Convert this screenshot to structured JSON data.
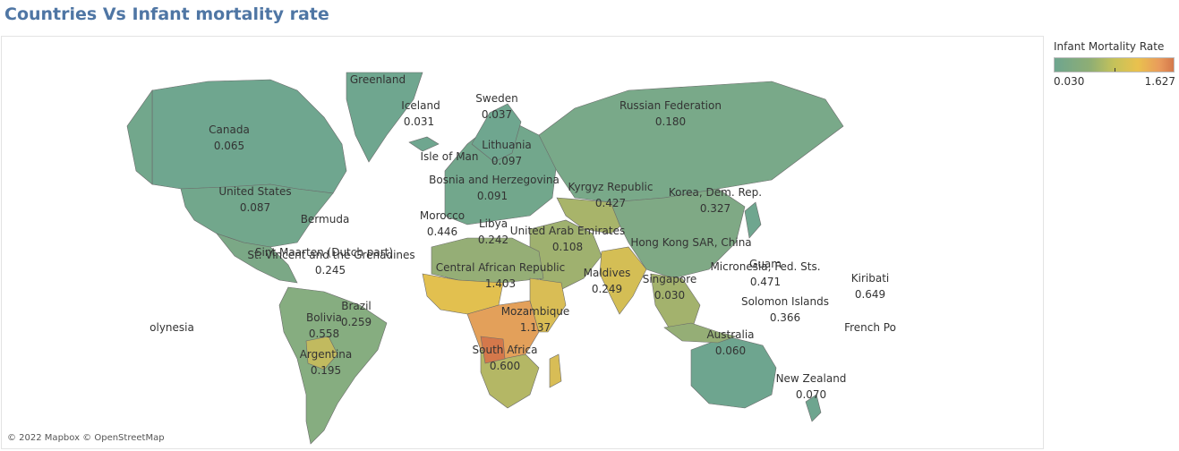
{
  "title": "Countries Vs Infant mortality rate",
  "legend": {
    "title": "Infant Mortality Rate",
    "min": "0.030",
    "max": "1.627",
    "colors": [
      "#6ea58f",
      "#c5c25a",
      "#e9c14e",
      "#d4784b"
    ]
  },
  "attribution": "© 2022 Mapbox © OpenStreetMap",
  "labels": [
    {
      "name": "Greenland"
    },
    {
      "name": "Iceland",
      "value": "0.031"
    },
    {
      "name": "Sweden",
      "value": "0.037"
    },
    {
      "name": "Russian Federation",
      "value": "0.180"
    },
    {
      "name": "Canada",
      "value": "0.065"
    },
    {
      "name": "Lithuania",
      "value": "0.097"
    },
    {
      "name": "Isle of Man"
    },
    {
      "name": "Bosnia and Herzegovina",
      "value": "0.091"
    },
    {
      "name": "Kyrgyz Republic",
      "value": "0.427"
    },
    {
      "name": "Korea, Dem. Rep.",
      "value": "0.327"
    },
    {
      "name": "United States",
      "value": "0.087"
    },
    {
      "name": "Bermuda"
    },
    {
      "name": "Morocco",
      "value": "0.446"
    },
    {
      "name": "Libya",
      "value": "0.242"
    },
    {
      "name": "United Arab Emirates",
      "value": "0.108"
    },
    {
      "name": "Hong Kong SAR, China"
    },
    {
      "name": "Sint Maarten (Dutch part)"
    },
    {
      "name": "St. Vincent and the Grenadines",
      "value": "0.245"
    },
    {
      "name": "Central African Republic",
      "value": "1.403"
    },
    {
      "name": "Maldives",
      "value": "0.249"
    },
    {
      "name": "Singapore",
      "value": "0.030"
    },
    {
      "name": "Guam",
      "value": "0.471"
    },
    {
      "name": "Micronesia, Fed. Sts."
    },
    {
      "name": "Kiribati",
      "value": "0.649"
    },
    {
      "name": "Solomon Islands",
      "value": "0.366"
    },
    {
      "name": "Brazil",
      "value": "0.259"
    },
    {
      "name": "Bolivia",
      "value": "0.558"
    },
    {
      "name": "Mozambique",
      "value": "1.137"
    },
    {
      "name": "Australia",
      "value": "0.060"
    },
    {
      "name": "French Po"
    },
    {
      "name": "olynesia"
    },
    {
      "name": "Argentina",
      "value": "0.195"
    },
    {
      "name": "South Africa",
      "value": "0.600"
    },
    {
      "name": "New Zealand",
      "value": "0.070"
    }
  ]
}
